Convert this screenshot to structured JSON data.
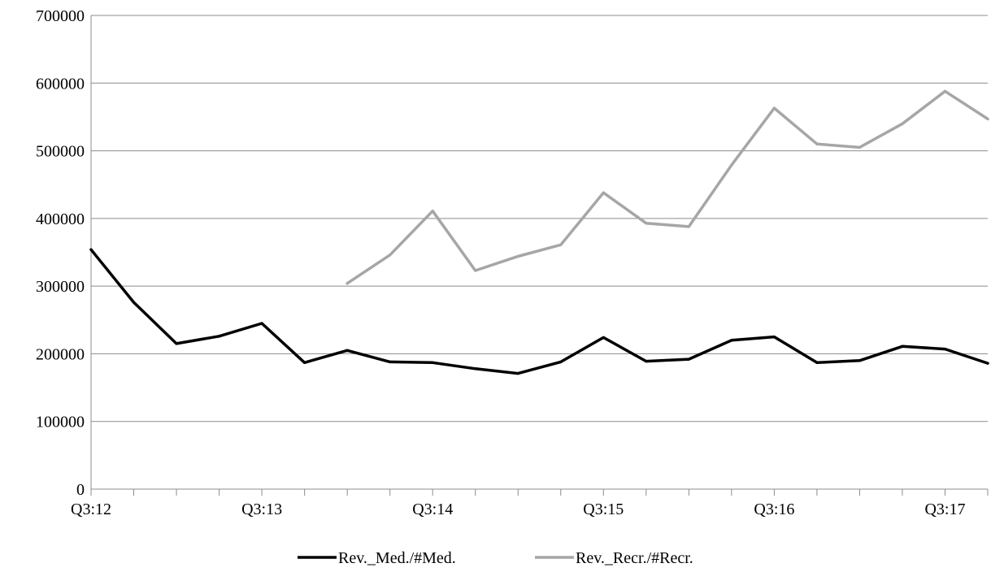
{
  "chart_data": {
    "type": "line",
    "x_tick_labels": [
      "Q3:12",
      "Q3:13",
      "Q3:14",
      "Q3:15",
      "Q3:16",
      "Q3:17"
    ],
    "x_tick_label_step": 4,
    "categories_count": 22,
    "ylim": [
      0,
      700000
    ],
    "y_ticks": [
      0,
      100000,
      200000,
      300000,
      400000,
      500000,
      600000,
      700000
    ],
    "grid": true,
    "legend_position": "bottom",
    "series": [
      {
        "name": "Rev._Med./#Med.",
        "color": "#000000",
        "start_index": 0,
        "values": [
          354000,
          276000,
          215000,
          226000,
          245000,
          187000,
          205000,
          188000,
          187000,
          178000,
          171000,
          188000,
          224000,
          189000,
          192000,
          220000,
          225000,
          187000,
          190000,
          211000,
          207000,
          186000
        ]
      },
      {
        "name": "Rev._Recr./#Recr.",
        "color": "#a6a6a6",
        "start_index": 6,
        "values": [
          304000,
          346000,
          411000,
          323000,
          344000,
          361000,
          438000,
          393000,
          388000,
          479000,
          563000,
          510000,
          505000,
          540000,
          588000,
          547000
        ]
      }
    ]
  }
}
